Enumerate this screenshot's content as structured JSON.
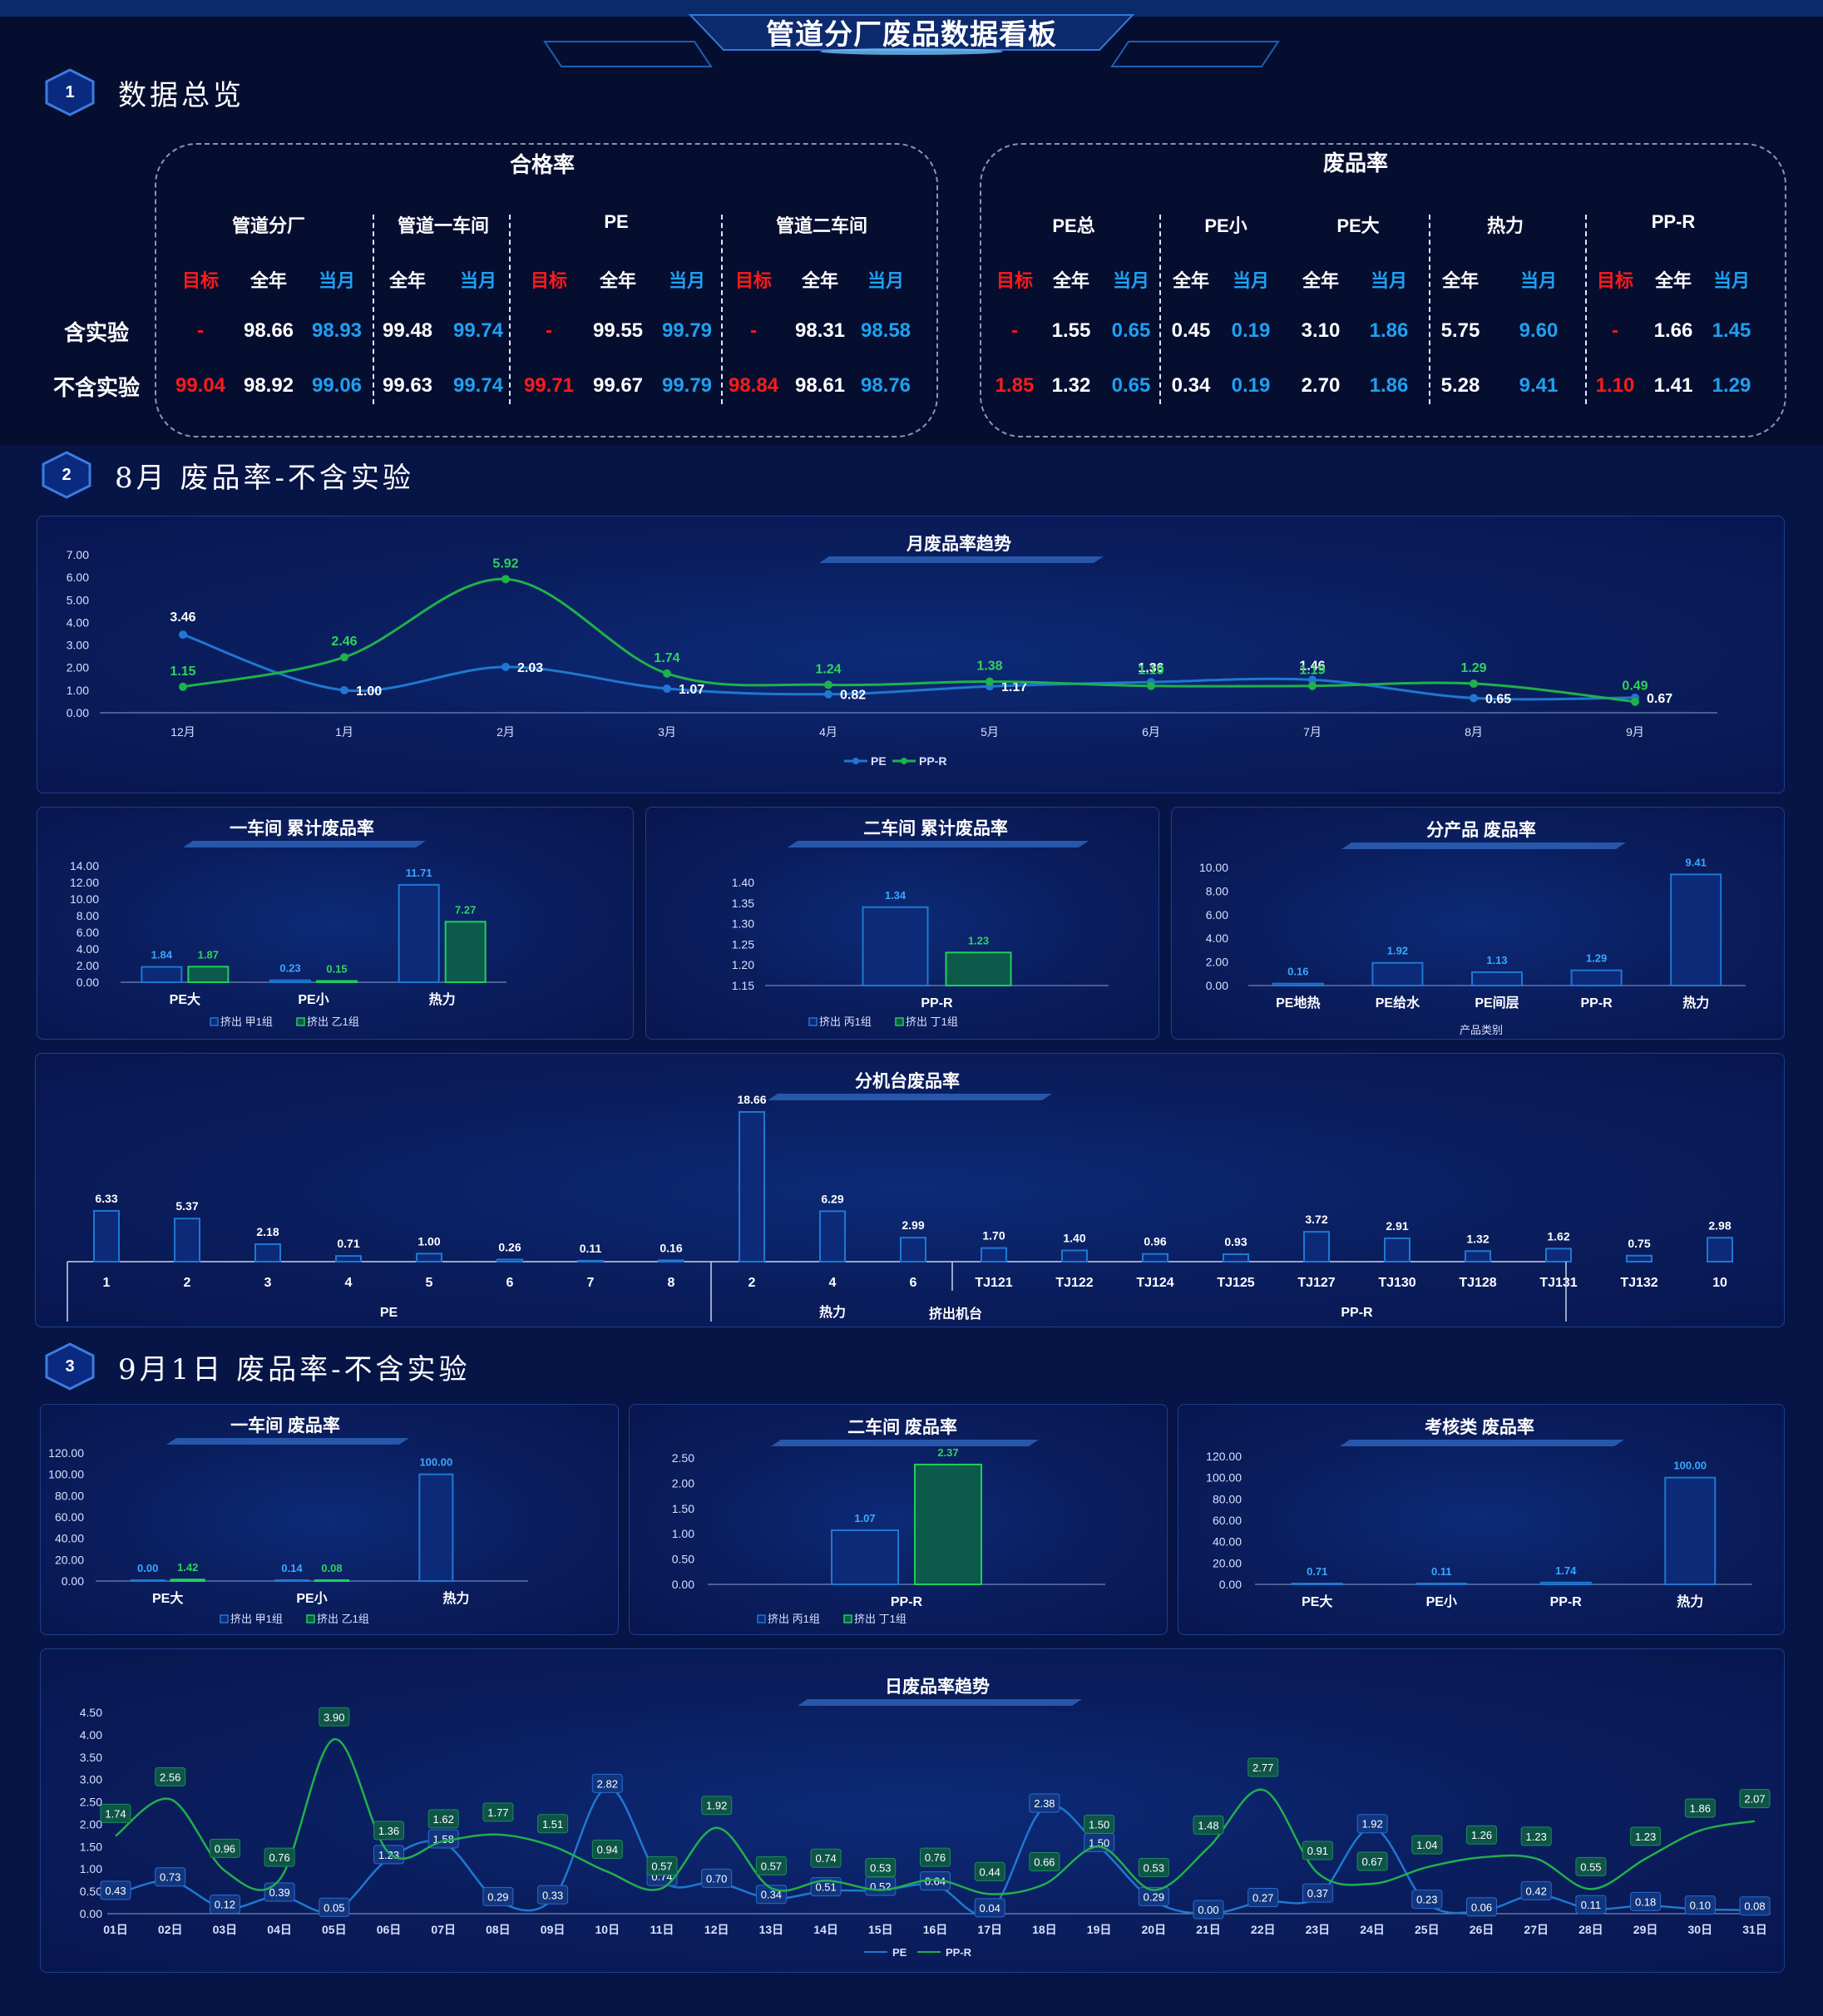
{
  "title": "管道分厂废品数据看板",
  "sections": {
    "s1": {
      "num": "1",
      "title": "数据总览"
    },
    "s2": {
      "num": "2",
      "title": "8月 废品率-不含实验"
    },
    "s3": {
      "num": "3",
      "title": "9月1日 废品率-不含实验"
    }
  },
  "overview": {
    "pass": {
      "title": "合格率",
      "groups": [
        "管道分厂",
        "管道一车间",
        "PE",
        "管道二车间"
      ],
      "cols": [
        "目标",
        "全年",
        "当月",
        "全年",
        "当月",
        "目标",
        "全年",
        "当月",
        "目标",
        "全年",
        "当月"
      ],
      "rows": [
        [
          "-",
          "98.66",
          "98.93",
          "99.48",
          "99.74",
          "-",
          "99.55",
          "99.79",
          "-",
          "98.31",
          "98.58"
        ],
        [
          "99.04",
          "98.92",
          "99.06",
          "99.63",
          "99.74",
          "99.71",
          "99.67",
          "99.79",
          "98.84",
          "98.61",
          "98.76"
        ]
      ]
    },
    "scrap": {
      "title": "废品率",
      "groups": [
        "PE总",
        "PE小",
        "PE大",
        "热力",
        "PP-R"
      ],
      "cols": [
        "目标",
        "全年",
        "当月",
        "全年",
        "当月",
        "全年",
        "当月",
        "全年",
        "当月",
        "目标",
        "全年",
        "当月"
      ],
      "rows": [
        [
          "-",
          "1.55",
          "0.65",
          "0.45",
          "0.19",
          "3.10",
          "1.86",
          "5.75",
          "9.60",
          "-",
          "1.66",
          "1.45"
        ],
        [
          "1.85",
          "1.32",
          "0.65",
          "0.34",
          "0.19",
          "2.70",
          "1.86",
          "5.28",
          "9.41",
          "1.10",
          "1.41",
          "1.29"
        ]
      ]
    },
    "row_labels": [
      "含实验",
      "不含实验"
    ],
    "colors": {
      "target": "#ff1a1a",
      "year": "#ffffff",
      "month": "#1fa0f0"
    }
  },
  "chart_data": [
    {
      "id": "monthly",
      "type": "line",
      "title": "月废品率趋势",
      "categories": [
        "12月",
        "1月",
        "2月",
        "3月",
        "4月",
        "5月",
        "6月",
        "7月",
        "8月",
        "9月"
      ],
      "ylim": [
        0,
        7
      ],
      "yticks": [
        "7.00",
        "6.00",
        "5.00",
        "4.00",
        "3.00",
        "2.00",
        "1.00",
        "0.00"
      ],
      "series": [
        {
          "name": "PE",
          "color": "#1e78d0",
          "values": [
            3.46,
            1.0,
            2.03,
            1.07,
            0.82,
            1.17,
            1.36,
            1.46,
            0.65,
            0.67
          ]
        },
        {
          "name": "PP-R",
          "color": "#1fb14c",
          "values": [
            1.15,
            2.46,
            5.92,
            1.74,
            1.24,
            1.38,
            1.19,
            1.19,
            1.29,
            0.49
          ]
        }
      ]
    },
    {
      "id": "ws1",
      "type": "bar",
      "title": "一车间 累计废品率",
      "categories": [
        "PE大",
        "PE小",
        "热力"
      ],
      "ylim": [
        0,
        14
      ],
      "yticks": [
        "14.00",
        "12.00",
        "10.00",
        "8.00",
        "6.00",
        "4.00",
        "2.00",
        "0.00"
      ],
      "series": [
        {
          "name": "挤出 甲1组",
          "color": "#1e78d0",
          "values": [
            1.84,
            0.23,
            11.71
          ]
        },
        {
          "name": "挤出 乙1组",
          "color": "#1fb14c",
          "values": [
            1.87,
            0.15,
            7.27
          ]
        }
      ]
    },
    {
      "id": "ws2",
      "type": "bar",
      "title": "二车间 累计废品率",
      "categories": [
        "PP-R"
      ],
      "ylim": [
        1.15,
        1.4
      ],
      "yticks": [
        "1.40",
        "1.35",
        "1.30",
        "1.25",
        "1.20",
        "1.15"
      ],
      "series": [
        {
          "name": "挤出 丙1组",
          "color": "#1e78d0",
          "values": [
            1.34
          ]
        },
        {
          "name": "挤出 丁1组",
          "color": "#1fb14c",
          "values": [
            1.23
          ]
        }
      ]
    },
    {
      "id": "prod",
      "type": "bar",
      "title": "分产品 废品率",
      "categories": [
        "PE地热",
        "PE给水",
        "PE间层",
        "PP-R",
        "热力"
      ],
      "ylim": [
        0,
        10
      ],
      "yticks": [
        "10.00",
        "8.00",
        "6.00",
        "4.00",
        "2.00",
        "0.00"
      ],
      "xlabel": "产品类别",
      "series": [
        {
          "name": "",
          "color": "#1e78d0",
          "values": [
            0.16,
            1.92,
            1.13,
            1.29,
            9.41
          ]
        }
      ]
    },
    {
      "id": "machine",
      "type": "bar",
      "title": "分机台废品率",
      "xlabel": "挤出机台",
      "categories": [
        "1",
        "2",
        "3",
        "4",
        "5",
        "6",
        "7",
        "8",
        "2",
        "4",
        "6",
        "TJ121",
        "TJ122",
        "TJ124",
        "TJ125",
        "TJ127",
        "TJ130",
        "TJ128",
        "TJ131",
        "TJ132",
        "10"
      ],
      "groups": [
        {
          "name": "PE",
          "count": 8
        },
        {
          "name": "热力",
          "count": 3
        },
        {
          "name": "PP-R",
          "count": 10
        }
      ],
      "values": [
        6.33,
        5.37,
        2.18,
        0.71,
        1.0,
        0.26,
        0.11,
        0.16,
        18.66,
        6.29,
        2.99,
        1.7,
        1.4,
        0.96,
        0.93,
        3.72,
        2.91,
        1.32,
        1.62,
        0.75,
        2.98
      ]
    },
    {
      "id": "d_ws1",
      "type": "bar",
      "title": "一车间 废品率",
      "categories": [
        "PE大",
        "PE小",
        "热力"
      ],
      "ylim": [
        0,
        120
      ],
      "yticks": [
        "120.00",
        "100.00",
        "80.00",
        "60.00",
        "40.00",
        "20.00",
        "0.00"
      ],
      "series": [
        {
          "name": "挤出 甲1组",
          "color": "#1e78d0",
          "values": [
            0.0,
            0.14,
            100.0
          ]
        },
        {
          "name": "挤出 乙1组",
          "color": "#1fb14c",
          "values": [
            1.42,
            0.08,
            null
          ]
        }
      ]
    },
    {
      "id": "d_ws2",
      "type": "bar",
      "title": "二车间 废品率",
      "categories": [
        "PP-R"
      ],
      "ylim": [
        0,
        2.5
      ],
      "yticks": [
        "2.50",
        "2.00",
        "1.50",
        "1.00",
        "0.50",
        "0.00"
      ],
      "series": [
        {
          "name": "挤出 丙1组",
          "color": "#1e78d0",
          "values": [
            1.07
          ]
        },
        {
          "name": "挤出 丁1组",
          "color": "#1fb14c",
          "values": [
            2.37
          ]
        }
      ]
    },
    {
      "id": "d_exam",
      "type": "bar",
      "title": "考核类 废品率",
      "categories": [
        "PE大",
        "PE小",
        "PP-R",
        "热力"
      ],
      "ylim": [
        0,
        120
      ],
      "yticks": [
        "120.00",
        "100.00",
        "80.00",
        "60.00",
        "40.00",
        "20.00",
        "0.00"
      ],
      "series": [
        {
          "name": "",
          "color": "#1e78d0",
          "values": [
            0.71,
            0.11,
            1.74,
            100.0
          ]
        }
      ]
    },
    {
      "id": "daily",
      "type": "line",
      "title": "日废品率趋势",
      "ylim": [
        0,
        4.5
      ],
      "yticks": [
        "4.50",
        "4.00",
        "3.50",
        "3.00",
        "2.50",
        "2.00",
        "1.50",
        "1.00",
        "0.50",
        "0.00"
      ],
      "categories": [
        "01日",
        "02日",
        "03日",
        "04日",
        "05日",
        "06日",
        "07日",
        "08日",
        "09日",
        "10日",
        "11日",
        "12日",
        "13日",
        "14日",
        "15日",
        "16日",
        "17日",
        "18日",
        "19日",
        "20日",
        "21日",
        "22日",
        "23日",
        "24日",
        "25日",
        "26日",
        "27日",
        "28日",
        "29日",
        "30日",
        "31日"
      ],
      "series": [
        {
          "name": "PE",
          "color": "#1e78d0",
          "values": [
            0.43,
            0.73,
            0.12,
            0.39,
            0.05,
            1.23,
            1.58,
            0.29,
            0.33,
            2.82,
            0.74,
            0.7,
            0.34,
            0.51,
            0.52,
            0.64,
            0.04,
            2.38,
            1.5,
            0.29,
            0.0,
            0.27,
            0.37,
            1.92,
            0.23,
            0.06,
            0.42,
            0.11,
            0.18,
            0.1,
            0.08
          ]
        },
        {
          "name": "PP-R",
          "color": "#1fb14c",
          "values": [
            1.74,
            2.56,
            0.96,
            0.76,
            3.9,
            1.36,
            1.62,
            1.77,
            1.51,
            0.94,
            0.57,
            1.92,
            0.57,
            0.74,
            0.53,
            0.76,
            0.44,
            0.66,
            1.5,
            0.53,
            1.48,
            2.77,
            0.91,
            0.67,
            1.04,
            1.26,
            1.23,
            0.55,
            1.23,
            1.86,
            2.07
          ]
        }
      ]
    }
  ]
}
